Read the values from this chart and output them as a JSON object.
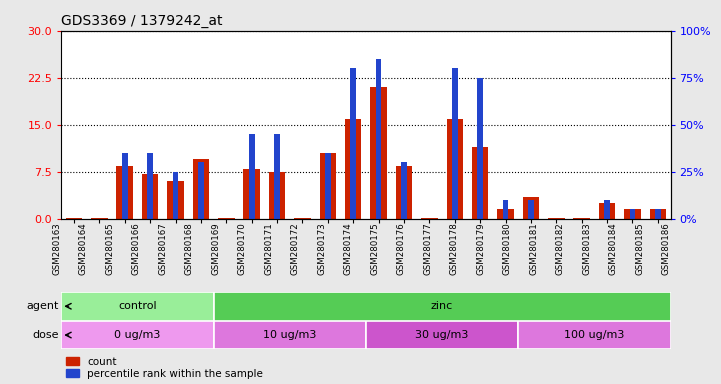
{
  "title": "GDS3369 / 1379242_at",
  "samples": [
    "GSM280163",
    "GSM280164",
    "GSM280165",
    "GSM280166",
    "GSM280167",
    "GSM280168",
    "GSM280169",
    "GSM280170",
    "GSM280171",
    "GSM280172",
    "GSM280173",
    "GSM280174",
    "GSM280175",
    "GSM280176",
    "GSM280177",
    "GSM280178",
    "GSM280179",
    "GSM280180",
    "GSM280181",
    "GSM280182",
    "GSM280183",
    "GSM280184",
    "GSM280185",
    "GSM280186"
  ],
  "count_values": [
    0.2,
    0.2,
    8.5,
    7.2,
    6.0,
    9.5,
    0.2,
    8.0,
    7.5,
    0.2,
    10.5,
    16.0,
    21.0,
    8.5,
    0.2,
    16.0,
    11.5,
    1.5,
    3.5,
    0.2,
    0.2,
    2.5,
    1.5,
    1.5
  ],
  "percentile_values": [
    0,
    0,
    35,
    35,
    25,
    30,
    0,
    45,
    45,
    0,
    35,
    80,
    85,
    30,
    0,
    80,
    75,
    10,
    10,
    0,
    0,
    10,
    5,
    5
  ],
  "bar_color": "#cc2200",
  "percentile_color": "#2244cc",
  "left_yticks": [
    0,
    7.5,
    15,
    22.5,
    30
  ],
  "right_yticks": [
    0,
    25,
    50,
    75,
    100
  ],
  "ylim_left": [
    0,
    30
  ],
  "ylim_right": [
    0,
    100
  ],
  "agent_groups": [
    {
      "label": "control",
      "start": 0,
      "end": 6,
      "color": "#99ee99"
    },
    {
      "label": "zinc",
      "start": 6,
      "end": 24,
      "color": "#55cc55"
    }
  ],
  "dose_groups": [
    {
      "label": "0 ug/m3",
      "start": 0,
      "end": 6,
      "color": "#ee99ee"
    },
    {
      "label": "10 ug/m3",
      "start": 6,
      "end": 12,
      "color": "#dd77dd"
    },
    {
      "label": "30 ug/m3",
      "start": 12,
      "end": 18,
      "color": "#cc55cc"
    },
    {
      "label": "100 ug/m3",
      "start": 18,
      "end": 24,
      "color": "#dd77dd"
    }
  ],
  "legend_count_label": "count",
  "legend_percentile_label": "percentile rank within the sample",
  "background_color": "#e8e8e8",
  "chart_bg": "#ffffff"
}
